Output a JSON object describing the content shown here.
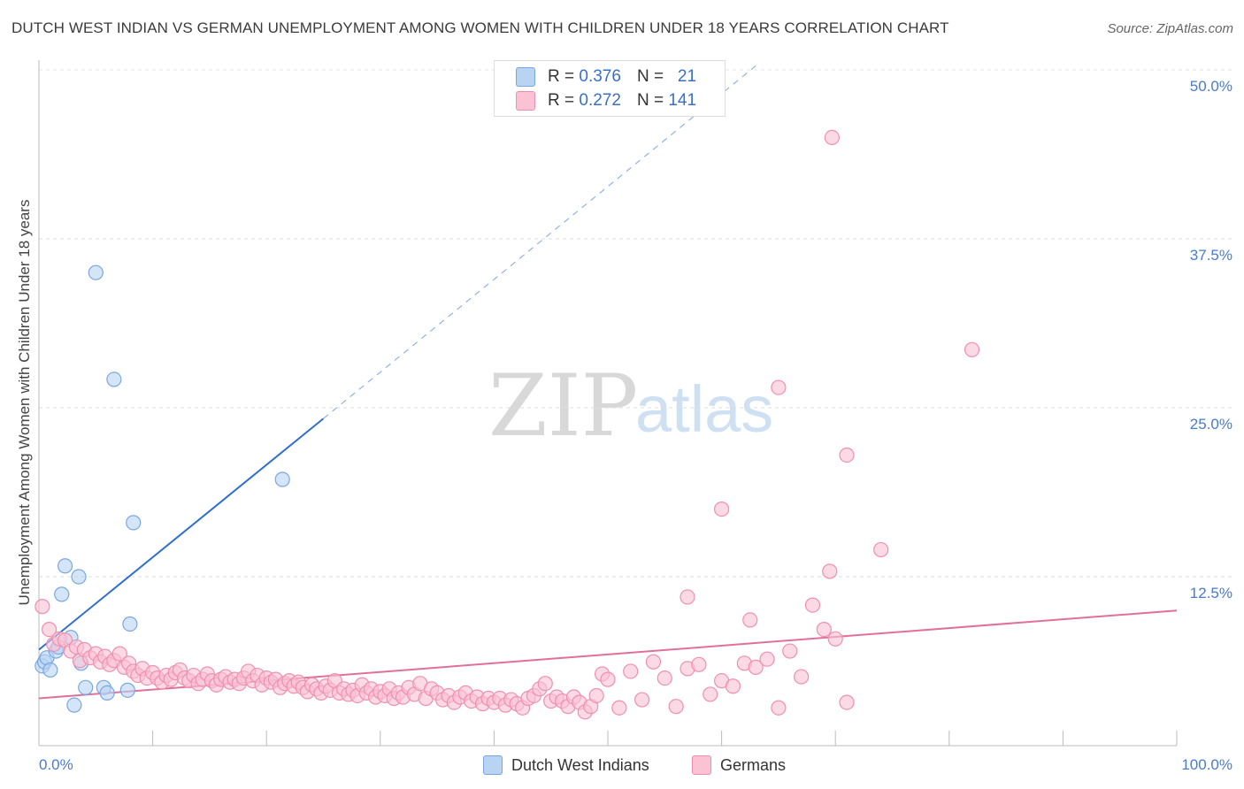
{
  "title": "DUTCH WEST INDIAN VS GERMAN UNEMPLOYMENT AMONG WOMEN WITH CHILDREN UNDER 18 YEARS CORRELATION CHART",
  "source": "Source: ZipAtlas.com",
  "legend": {
    "r_label": "R =",
    "n_label": "N =",
    "rows": [
      {
        "name": "Dutch West Indians",
        "r": "0.376",
        "n": "21",
        "color": "#b9d3f3",
        "border": "#7aa6e0"
      },
      {
        "name": "Germans",
        "r": "0.272",
        "n": "141",
        "color": "#fac2d3",
        "border": "#ef8fae"
      }
    ]
  },
  "watermark": {
    "zip": "ZIP",
    "atlas": "atlas"
  },
  "chart_data": {
    "type": "scatter",
    "title": "DUTCH WEST INDIAN VS GERMAN UNEMPLOYMENT AMONG WOMEN WITH CHILDREN UNDER 18 YEARS CORRELATION CHART",
    "xlabel": "",
    "ylabel": "Unemployment Among Women with Children Under 18 years",
    "xlim": [
      0,
      100
    ],
    "ylim": [
      0,
      50
    ],
    "y_ticks": [
      12.5,
      25.0,
      37.5,
      50.0
    ],
    "y_tick_labels": [
      "12.5%",
      "25.0%",
      "37.5%",
      "50.0%"
    ],
    "x_tick_labels": [
      "0.0%",
      "100.0%"
    ],
    "series": [
      {
        "name": "Dutch West Indians",
        "color": "#7aa6e0",
        "fill": "#b9d3f3",
        "trend": {
          "x0": 0,
          "y0": 7.1,
          "x1": 25,
          "y1": 24.2,
          "dash_to_x": 63,
          "dash_to_y": 50.3,
          "color": "#2f6fcb"
        },
        "points": [
          [
            0.3,
            5.9
          ],
          [
            0.5,
            6.2
          ],
          [
            0.7,
            6.5
          ],
          [
            1.0,
            5.6
          ],
          [
            1.5,
            7.0
          ],
          [
            1.7,
            7.3
          ],
          [
            2.0,
            11.2
          ],
          [
            2.3,
            13.3
          ],
          [
            2.8,
            8.0
          ],
          [
            3.1,
            3.0
          ],
          [
            3.5,
            12.5
          ],
          [
            3.7,
            6.1
          ],
          [
            4.1,
            4.3
          ],
          [
            5.0,
            35.0
          ],
          [
            5.7,
            4.3
          ],
          [
            6.0,
            3.9
          ],
          [
            6.6,
            27.1
          ],
          [
            7.8,
            4.1
          ],
          [
            8.0,
            9.0
          ],
          [
            8.3,
            16.5
          ],
          [
            21.4,
            19.7
          ]
        ]
      },
      {
        "name": "Germans",
        "color": "#ef8fae",
        "fill": "#fac2d3",
        "trend": {
          "x0": 0,
          "y0": 3.5,
          "x1": 100,
          "y1": 10.0,
          "color": "#e0709a"
        },
        "points": [
          [
            0.3,
            10.3
          ],
          [
            0.9,
            8.6
          ],
          [
            1.3,
            7.5
          ],
          [
            1.8,
            7.9
          ],
          [
            2.3,
            7.8
          ],
          [
            2.8,
            7.0
          ],
          [
            3.3,
            7.3
          ],
          [
            3.6,
            6.3
          ],
          [
            4.0,
            7.1
          ],
          [
            4.5,
            6.5
          ],
          [
            5.0,
            6.8
          ],
          [
            5.4,
            6.2
          ],
          [
            5.8,
            6.6
          ],
          [
            6.2,
            6.0
          ],
          [
            6.6,
            6.3
          ],
          [
            7.1,
            6.8
          ],
          [
            7.5,
            5.8
          ],
          [
            7.9,
            6.1
          ],
          [
            8.3,
            5.5
          ],
          [
            8.7,
            5.2
          ],
          [
            9.1,
            5.7
          ],
          [
            9.5,
            5.0
          ],
          [
            10.0,
            5.4
          ],
          [
            10.4,
            5.0
          ],
          [
            10.8,
            4.7
          ],
          [
            11.2,
            5.2
          ],
          [
            11.6,
            4.9
          ],
          [
            12.0,
            5.4
          ],
          [
            12.4,
            5.6
          ],
          [
            12.8,
            5.0
          ],
          [
            13.2,
            4.8
          ],
          [
            13.6,
            5.2
          ],
          [
            14.0,
            4.6
          ],
          [
            14.4,
            4.9
          ],
          [
            14.8,
            5.3
          ],
          [
            15.2,
            4.8
          ],
          [
            15.6,
            4.5
          ],
          [
            16.0,
            4.9
          ],
          [
            16.4,
            5.1
          ],
          [
            16.8,
            4.7
          ],
          [
            17.2,
            4.9
          ],
          [
            17.6,
            4.6
          ],
          [
            18.0,
            5.0
          ],
          [
            18.4,
            5.5
          ],
          [
            18.8,
            4.8
          ],
          [
            19.2,
            5.2
          ],
          [
            19.6,
            4.5
          ],
          [
            20.0,
            5.0
          ],
          [
            20.4,
            4.7
          ],
          [
            20.8,
            4.9
          ],
          [
            21.2,
            4.3
          ],
          [
            21.6,
            4.6
          ],
          [
            22.0,
            4.8
          ],
          [
            22.4,
            4.4
          ],
          [
            22.8,
            4.7
          ],
          [
            23.2,
            4.3
          ],
          [
            23.6,
            4.0
          ],
          [
            24.0,
            4.5
          ],
          [
            24.4,
            4.2
          ],
          [
            24.8,
            3.9
          ],
          [
            25.2,
            4.4
          ],
          [
            25.6,
            4.1
          ],
          [
            26.0,
            4.8
          ],
          [
            26.4,
            3.9
          ],
          [
            26.8,
            4.2
          ],
          [
            27.2,
            3.8
          ],
          [
            27.6,
            4.1
          ],
          [
            28.0,
            3.7
          ],
          [
            28.4,
            4.5
          ],
          [
            28.8,
            3.9
          ],
          [
            29.2,
            4.2
          ],
          [
            29.6,
            3.6
          ],
          [
            30.0,
            4.0
          ],
          [
            30.4,
            3.7
          ],
          [
            30.8,
            4.2
          ],
          [
            31.2,
            3.5
          ],
          [
            31.6,
            3.9
          ],
          [
            32.0,
            3.6
          ],
          [
            32.5,
            4.3
          ],
          [
            33.0,
            3.8
          ],
          [
            33.5,
            4.6
          ],
          [
            34.0,
            3.5
          ],
          [
            34.5,
            4.2
          ],
          [
            35.0,
            3.9
          ],
          [
            35.5,
            3.4
          ],
          [
            36.0,
            3.7
          ],
          [
            36.5,
            3.2
          ],
          [
            37.0,
            3.6
          ],
          [
            37.5,
            3.9
          ],
          [
            38.0,
            3.3
          ],
          [
            38.5,
            3.6
          ],
          [
            39.0,
            3.1
          ],
          [
            39.5,
            3.5
          ],
          [
            40.0,
            3.2
          ],
          [
            40.5,
            3.5
          ],
          [
            41.0,
            3.0
          ],
          [
            41.5,
            3.4
          ],
          [
            42.0,
            3.1
          ],
          [
            42.5,
            2.8
          ],
          [
            43.0,
            3.5
          ],
          [
            43.5,
            3.7
          ],
          [
            44.0,
            4.2
          ],
          [
            44.5,
            4.6
          ],
          [
            45.0,
            3.3
          ],
          [
            45.5,
            3.6
          ],
          [
            46.0,
            3.3
          ],
          [
            46.5,
            2.9
          ],
          [
            47.0,
            3.6
          ],
          [
            47.5,
            3.2
          ],
          [
            48.0,
            2.5
          ],
          [
            48.5,
            2.9
          ],
          [
            49.0,
            3.7
          ],
          [
            49.5,
            5.3
          ],
          [
            50.0,
            4.9
          ],
          [
            51.0,
            2.8
          ],
          [
            52.0,
            5.5
          ],
          [
            53.0,
            3.4
          ],
          [
            54.0,
            6.2
          ],
          [
            55.0,
            5.0
          ],
          [
            56.0,
            2.9
          ],
          [
            57.0,
            5.7
          ],
          [
            58.0,
            6.0
          ],
          [
            59.0,
            3.8
          ],
          [
            60.0,
            4.8
          ],
          [
            61.0,
            4.4
          ],
          [
            62.0,
            6.1
          ],
          [
            63.0,
            5.8
          ],
          [
            64.0,
            6.4
          ],
          [
            65.0,
            2.8
          ],
          [
            66.0,
            7.0
          ],
          [
            67.0,
            5.1
          ],
          [
            68.0,
            10.4
          ],
          [
            69.0,
            8.6
          ],
          [
            70.0,
            7.9
          ],
          [
            71.0,
            3.2
          ],
          [
            57.0,
            11.0
          ],
          [
            60.0,
            17.5
          ],
          [
            62.5,
            9.3
          ],
          [
            65.0,
            26.5
          ],
          [
            69.5,
            12.9
          ],
          [
            69.7,
            45.0
          ],
          [
            71.0,
            21.5
          ],
          [
            74.0,
            14.5
          ],
          [
            82.0,
            29.3
          ]
        ]
      }
    ]
  }
}
